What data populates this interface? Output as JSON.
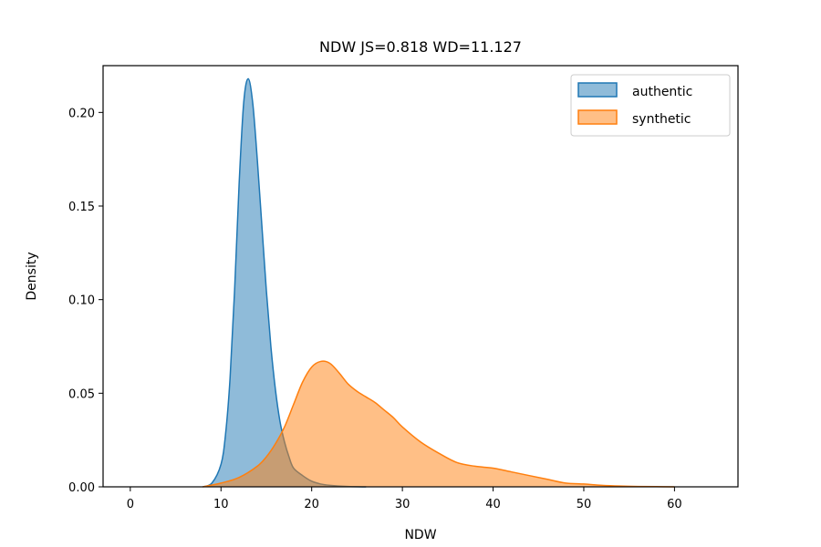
{
  "chart_data": {
    "type": "area",
    "title": "NDW  JS=0.818  WD=11.127",
    "xlabel": "NDW",
    "ylabel": "Density",
    "xlim": [
      -3,
      67
    ],
    "ylim": [
      0,
      0.225
    ],
    "xticks": [
      0,
      10,
      20,
      30,
      40,
      50,
      60
    ],
    "yticks": [
      0.0,
      0.05,
      0.1,
      0.15,
      0.2
    ],
    "ytick_labels": [
      "0.00",
      "0.05",
      "0.10",
      "0.15",
      "0.20"
    ],
    "grid": false,
    "legend": {
      "location": "upper right"
    },
    "series": [
      {
        "name": "authentic",
        "line_color": "#1f77b4",
        "fill_color": "#1f77b4",
        "fill_opacity": 0.5,
        "x": [
          8.0,
          9.0,
          10.0,
          10.5,
          11.0,
          11.5,
          12.0,
          12.5,
          13.0,
          13.5,
          14.0,
          14.5,
          15.0,
          15.5,
          16.0,
          16.5,
          17.0,
          17.5,
          18.0,
          19.0,
          20.0,
          21.0,
          22.0,
          24.0,
          26.0
        ],
        "y": [
          0.0,
          0.002,
          0.012,
          0.028,
          0.058,
          0.105,
          0.162,
          0.205,
          0.218,
          0.205,
          0.175,
          0.14,
          0.105,
          0.075,
          0.052,
          0.035,
          0.024,
          0.016,
          0.01,
          0.006,
          0.003,
          0.0015,
          0.0008,
          0.0002,
          0.0
        ]
      },
      {
        "name": "synthetic",
        "line_color": "#ff7f0e",
        "fill_color": "#ff7f0e",
        "fill_opacity": 0.5,
        "x": [
          8.0,
          10.0,
          12.0,
          14.0,
          15.0,
          16.0,
          17.0,
          18.0,
          19.0,
          20.0,
          21.0,
          22.0,
          23.0,
          24.0,
          25.0,
          26.0,
          27.0,
          28.0,
          29.0,
          30.0,
          32.0,
          34.0,
          36.0,
          38.0,
          40.0,
          42.0,
          44.0,
          46.0,
          48.0,
          50.0,
          52.0,
          54.0,
          56.0,
          58.0,
          60.0
        ],
        "y": [
          0.0,
          0.002,
          0.005,
          0.011,
          0.016,
          0.023,
          0.032,
          0.044,
          0.056,
          0.064,
          0.067,
          0.066,
          0.061,
          0.055,
          0.051,
          0.048,
          0.045,
          0.041,
          0.037,
          0.032,
          0.024,
          0.018,
          0.013,
          0.011,
          0.01,
          0.008,
          0.006,
          0.004,
          0.002,
          0.0015,
          0.0008,
          0.0004,
          0.0002,
          0.0001,
          0.0
        ]
      }
    ]
  }
}
